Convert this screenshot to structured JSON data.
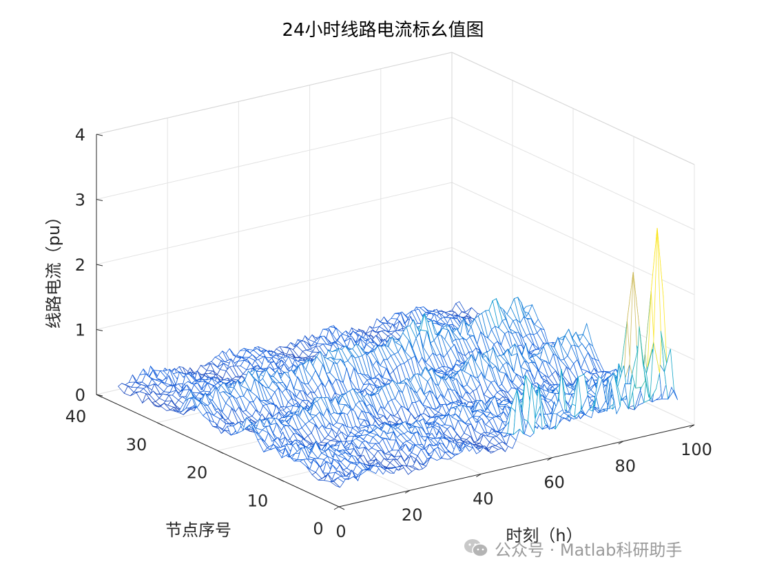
{
  "chart_data": {
    "type": "mesh3d",
    "title": "24小时线路电流标幺值图",
    "xlabel": "时刻（h）",
    "ylabel": "节点序号",
    "zlabel": "线路电流（pu）",
    "xlim": [
      0,
      100
    ],
    "ylim": [
      0,
      40
    ],
    "zlim": [
      0,
      4
    ],
    "xticks": [
      "0",
      "20",
      "40",
      "60",
      "80",
      "100"
    ],
    "yticks": [
      "0",
      "10",
      "20",
      "30",
      "40"
    ],
    "zticks": [
      "0",
      "1",
      "2",
      "3",
      "4"
    ],
    "grid": true,
    "colormap": "parula",
    "x_count": 96,
    "y_count": 37,
    "baseline_current": [
      0.25,
      0.45
    ],
    "ridge_rows": [
      {
        "node": 25,
        "peak": 1.0
      },
      {
        "node": 16,
        "peak": 0.85
      },
      {
        "node": 8,
        "peak": 0.6
      }
    ],
    "spikes": [
      {
        "time": 58,
        "node": 1,
        "current": 1.2
      },
      {
        "time": 64,
        "node": 1,
        "current": 1.0
      },
      {
        "time": 71,
        "node": 1,
        "current": 1.3
      },
      {
        "time": 76,
        "node": 1,
        "current": 1.1
      },
      {
        "time": 82,
        "node": 1,
        "current": 1.2
      },
      {
        "time": 86,
        "node": 1,
        "current": 1.4
      },
      {
        "time": 88,
        "node": 3,
        "current": 2.5
      },
      {
        "time": 90,
        "node": 1,
        "current": 1.3
      },
      {
        "time": 93,
        "node": 2,
        "current": 3.1
      },
      {
        "time": 95,
        "node": 1,
        "current": 1.2
      }
    ]
  },
  "watermark": {
    "text": "公众号 · Matlab科研助手",
    "icon": "wechat-icon",
    "color": "#9a9a9a"
  }
}
